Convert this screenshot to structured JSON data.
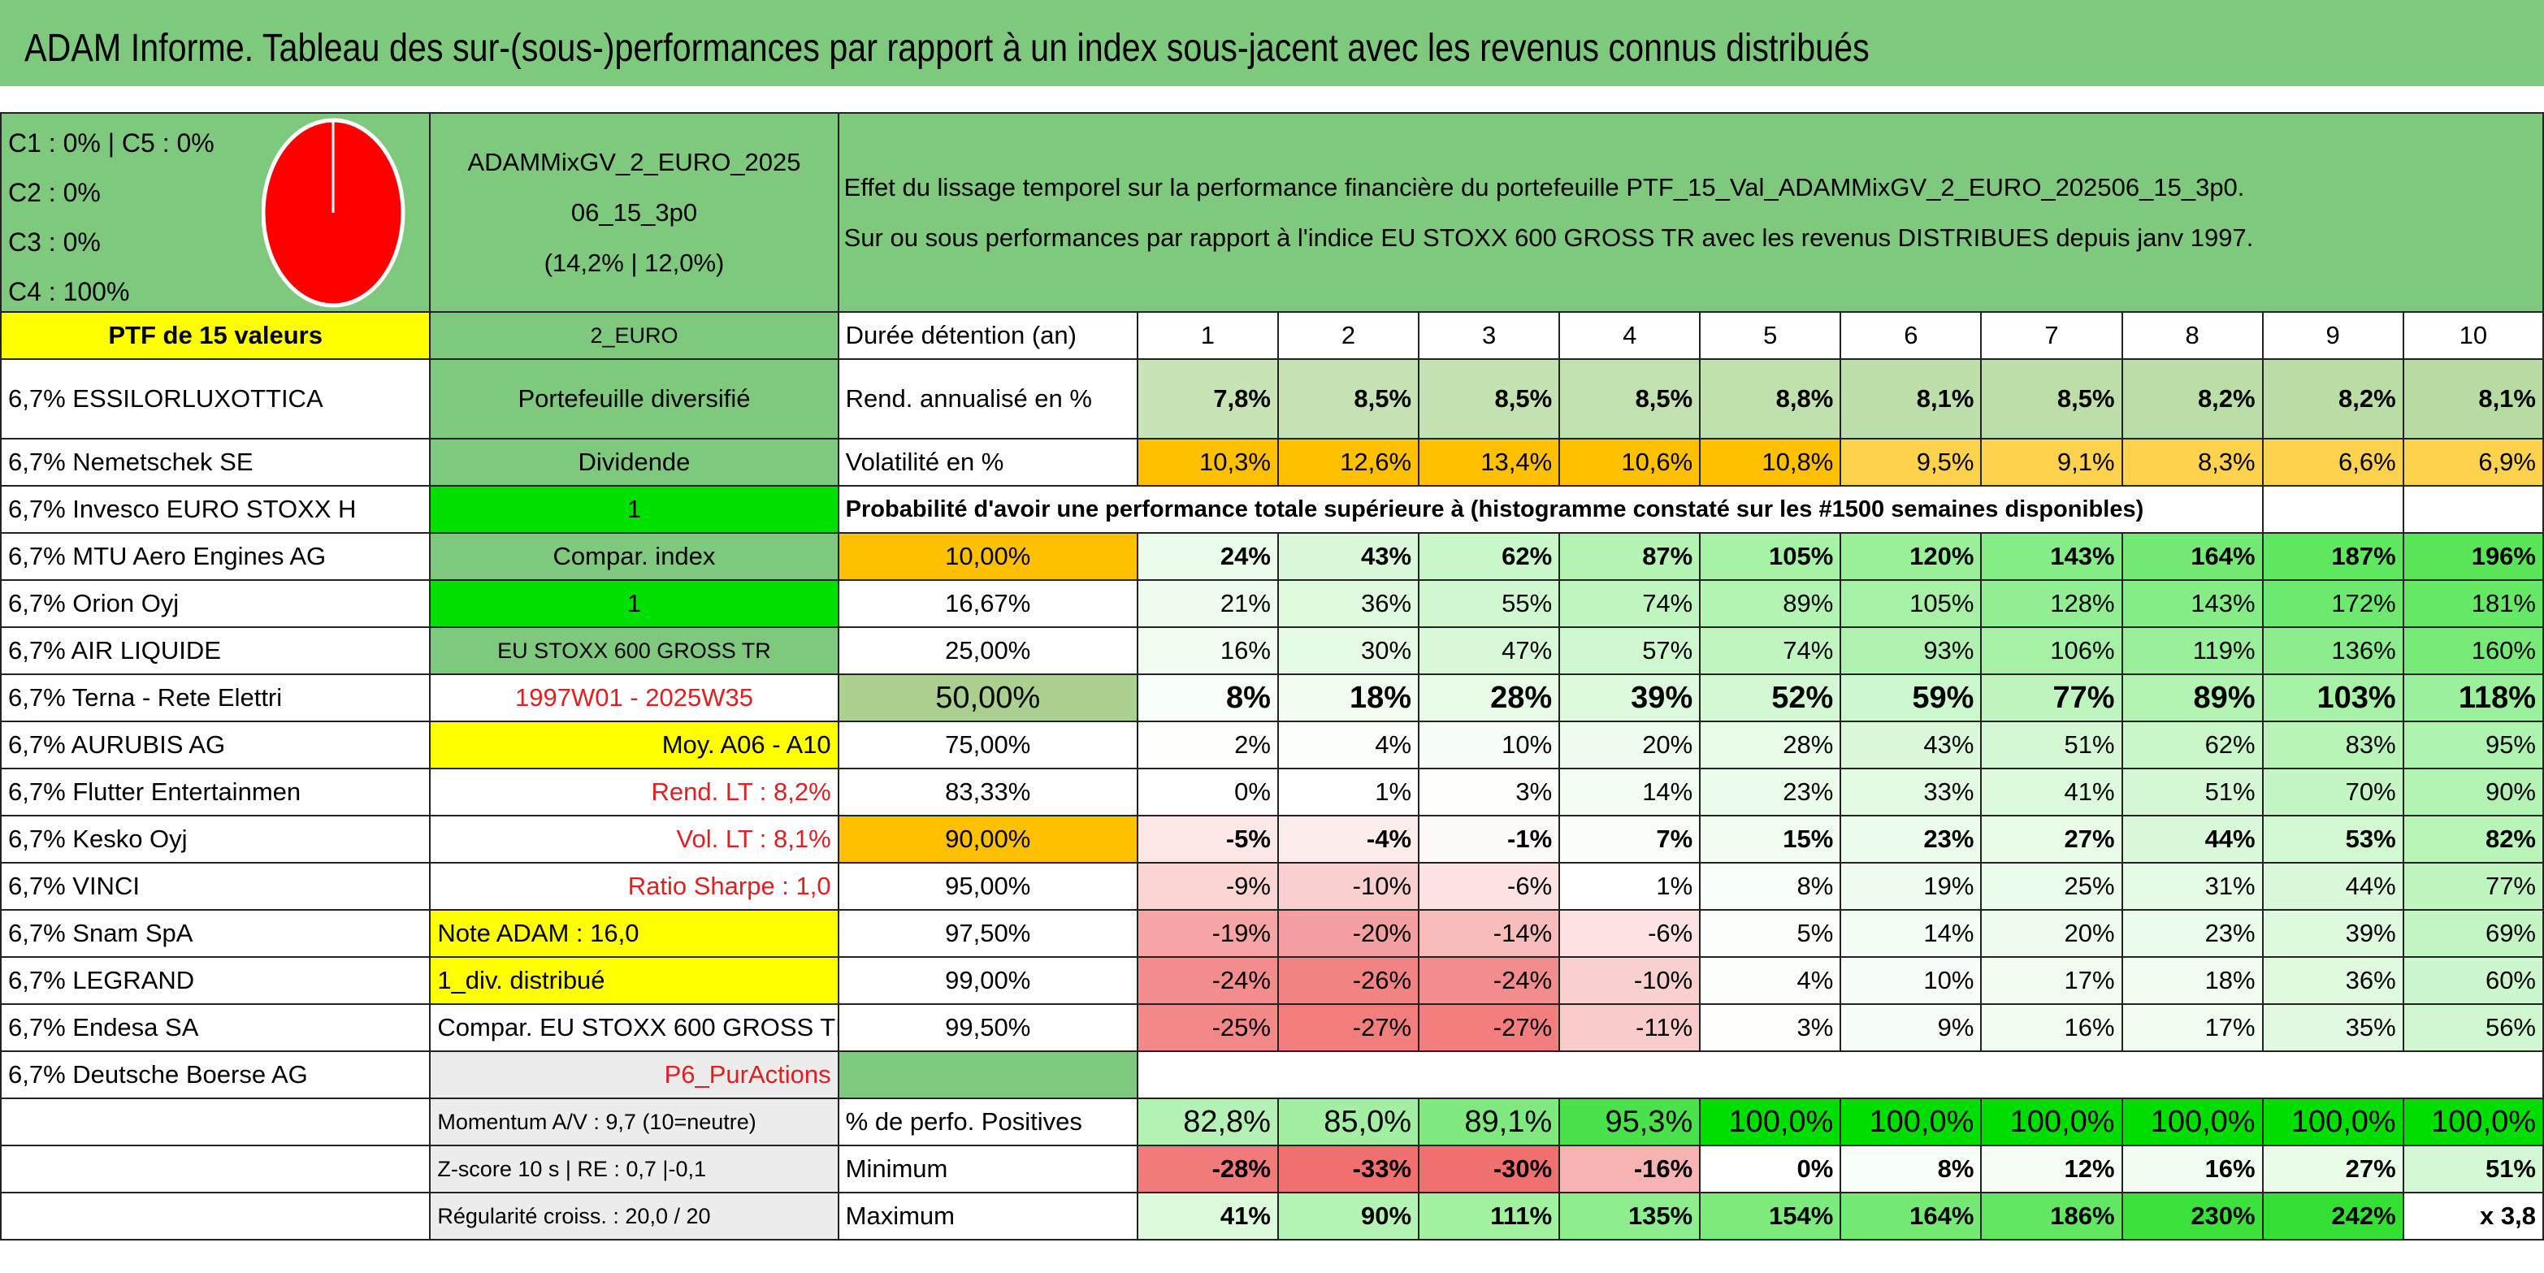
{
  "title": "ADAM Informe. Tableau des sur-(sous-)performances par rapport à un index sous-jacent avec les revenus connus distribués",
  "pie": {
    "legend": [
      "C1 : 0% | C5 : 0%",
      "C2 : 0%",
      "C3 : 0%",
      "C4 : 100%"
    ],
    "fill_color": "#ff0000"
  },
  "fund": {
    "name_line1": "ADAMMixGV_2_EURO_2025",
    "name_line2": "06_15_3p0",
    "name_line3": "(14,2% | 12,0%)",
    "code": "2_EURO",
    "type": "Portefeuille diversifié",
    "dividend_label": "Dividende",
    "dividend_value": "1",
    "compar_label": "Compar. index",
    "compar_value": "1",
    "index_name": "EU STOXX 600 GROSS TR",
    "period": "1997W01 - 2025W35",
    "moy": "Moy. A06 - A10",
    "rend_lt": "Rend. LT : 8,2%",
    "vol_lt": "Vol. LT : 8,1%",
    "sharpe": "Ratio Sharpe : 1,0",
    "note": "Note ADAM : 16,0",
    "div_distrib": "1_div. distribué",
    "compar_eu": "Compar. EU STOXX 600 GROSS TR",
    "p6": "P6_PurActions",
    "momentum": "Momentum A/V : 9,7 (10=neutre)",
    "zscore": "Z-score 10 s | RE : 0,7 |-0,1",
    "regularite": "Régularité croiss. : 20,0 / 20"
  },
  "description": {
    "line1": "Effet du lissage temporel sur la performance financière du portefeuille PTF_15_Val_ADAMMixGV_2_EURO_202506_15_3p0.",
    "line2": "Sur ou sous performances par rapport à l'indice EU STOXX 600 GROSS TR avec les revenus DISTRIBUES depuis janv 1997."
  },
  "portfolio": {
    "header": "PTF de 15 valeurs",
    "holdings": [
      "6,7% ESSILORLUXOTTICA",
      "6,7% Nemetschek SE",
      "6,7% Invesco EURO STOXX H",
      "6,7% MTU Aero Engines AG",
      "6,7% Orion Oyj",
      "6,7% AIR LIQUIDE",
      "6,7% Terna - Rete Elettri",
      "6,7% AURUBIS AG",
      "6,7% Flutter Entertainmen",
      "6,7% Kesko Oyj",
      "6,7% VINCI",
      "6,7% Snam SpA",
      "6,7% LEGRAND",
      "6,7% Endesa SA",
      "6,7% Deutsche Boerse AG"
    ]
  },
  "table": {
    "duration_label": "Durée détention (an)",
    "years": [
      "1",
      "2",
      "3",
      "4",
      "5",
      "6",
      "7",
      "8",
      "9",
      "10"
    ],
    "rend_label": "Rend. annualisé en %",
    "rend": [
      "7,8%",
      "8,5%",
      "8,5%",
      "8,5%",
      "8,8%",
      "8,1%",
      "8,5%",
      "8,2%",
      "8,2%",
      "8,1%"
    ],
    "vol_label": "Volatilité en %",
    "vol": [
      "10,3%",
      "12,6%",
      "13,4%",
      "10,6%",
      "10,8%",
      "9,5%",
      "9,1%",
      "8,3%",
      "6,6%",
      "6,9%"
    ],
    "prob_label": "Probabilité d'avoir une performance totale supérieure à (histogramme constaté sur les #1500 semaines disponibles)",
    "prob_rows": [
      {
        "p": "10,00%",
        "v": [
          "24%",
          "43%",
          "62%",
          "87%",
          "105%",
          "120%",
          "143%",
          "164%",
          "187%",
          "196%"
        ]
      },
      {
        "p": "16,67%",
        "v": [
          "21%",
          "36%",
          "55%",
          "74%",
          "89%",
          "105%",
          "128%",
          "143%",
          "172%",
          "181%"
        ]
      },
      {
        "p": "25,00%",
        "v": [
          "16%",
          "30%",
          "47%",
          "57%",
          "74%",
          "93%",
          "106%",
          "119%",
          "136%",
          "160%"
        ]
      },
      {
        "p": "50,00%",
        "v": [
          "8%",
          "18%",
          "28%",
          "39%",
          "52%",
          "59%",
          "77%",
          "89%",
          "103%",
          "118%"
        ]
      },
      {
        "p": "75,00%",
        "v": [
          "2%",
          "4%",
          "10%",
          "20%",
          "28%",
          "43%",
          "51%",
          "62%",
          "83%",
          "95%"
        ]
      },
      {
        "p": "83,33%",
        "v": [
          "0%",
          "1%",
          "3%",
          "14%",
          "23%",
          "33%",
          "41%",
          "51%",
          "70%",
          "90%"
        ]
      },
      {
        "p": "90,00%",
        "v": [
          "-5%",
          "-4%",
          "-1%",
          "7%",
          "15%",
          "23%",
          "27%",
          "44%",
          "53%",
          "82%"
        ]
      },
      {
        "p": "95,00%",
        "v": [
          "-9%",
          "-10%",
          "-6%",
          "1%",
          "8%",
          "19%",
          "25%",
          "31%",
          "44%",
          "77%"
        ]
      },
      {
        "p": "97,50%",
        "v": [
          "-19%",
          "-20%",
          "-14%",
          "-6%",
          "5%",
          "14%",
          "20%",
          "23%",
          "39%",
          "69%"
        ]
      },
      {
        "p": "99,00%",
        "v": [
          "-24%",
          "-26%",
          "-24%",
          "-10%",
          "4%",
          "10%",
          "17%",
          "18%",
          "36%",
          "60%"
        ]
      },
      {
        "p": "99,50%",
        "v": [
          "-25%",
          "-27%",
          "-27%",
          "-11%",
          "3%",
          "9%",
          "16%",
          "17%",
          "35%",
          "56%"
        ]
      }
    ],
    "pos_label": "% de perfo. Positives",
    "pos": [
      "82,8%",
      "85,0%",
      "89,1%",
      "95,3%",
      "100,0%",
      "100,0%",
      "100,0%",
      "100,0%",
      "100,0%",
      "100,0%"
    ],
    "min_label": "Minimum",
    "min": [
      "-28%",
      "-33%",
      "-30%",
      "-16%",
      "0%",
      "8%",
      "12%",
      "16%",
      "27%",
      "51%"
    ],
    "max_label": "Maximum",
    "max": [
      "41%",
      "90%",
      "111%",
      "135%",
      "154%",
      "164%",
      "186%",
      "230%",
      "242%",
      "x 3,8"
    ]
  }
}
